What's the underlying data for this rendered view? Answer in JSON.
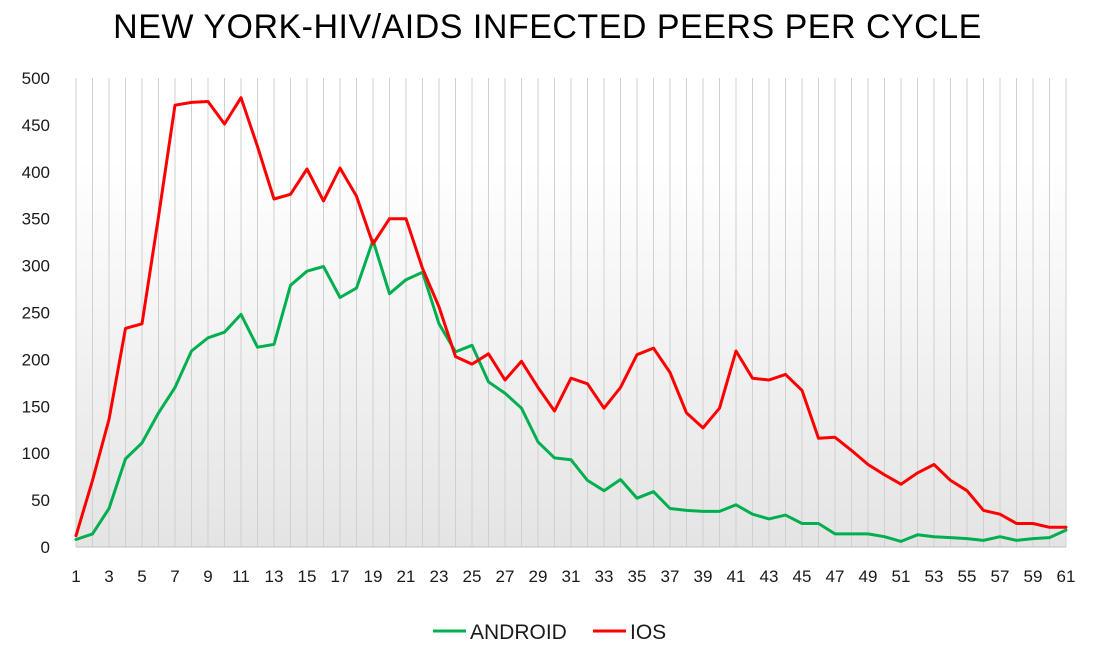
{
  "chart_data": {
    "type": "line",
    "title": "NEW YORK-HIV/AIDS INFECTED PEERS PER CYCLE",
    "xlabel": "",
    "ylabel": "",
    "ylim": [
      0,
      500
    ],
    "yticks": [
      0,
      50,
      100,
      150,
      200,
      250,
      300,
      350,
      400,
      450,
      500
    ],
    "x": [
      1,
      2,
      3,
      4,
      5,
      6,
      7,
      8,
      9,
      10,
      11,
      12,
      13,
      14,
      15,
      16,
      17,
      18,
      19,
      20,
      21,
      22,
      23,
      24,
      25,
      26,
      27,
      28,
      29,
      30,
      31,
      32,
      33,
      34,
      35,
      36,
      37,
      38,
      39,
      40,
      41,
      42,
      43,
      44,
      45,
      46,
      47,
      48,
      49,
      50,
      51,
      52,
      53,
      54,
      55,
      56,
      57,
      58,
      59,
      60,
      61
    ],
    "xtick_labels": [
      1,
      3,
      5,
      7,
      9,
      11,
      13,
      15,
      17,
      19,
      21,
      23,
      25,
      27,
      29,
      31,
      33,
      35,
      37,
      39,
      41,
      43,
      45,
      47,
      49,
      51,
      53,
      55,
      57,
      59,
      61
    ],
    "legend_position": "bottom",
    "grid": "vertical lines",
    "series": [
      {
        "name": "ANDROID",
        "color": "#00b050",
        "values": [
          8,
          14,
          41,
          94,
          111,
          143,
          170,
          209,
          223,
          229,
          248,
          213,
          216,
          279,
          294,
          299,
          266,
          276,
          327,
          270,
          285,
          293,
          238,
          208,
          215,
          176,
          164,
          148,
          112,
          95,
          93,
          71,
          60,
          72,
          52,
          59,
          41,
          39,
          38,
          38,
          45,
          35,
          30,
          34,
          25,
          25,
          14,
          14,
          14,
          11,
          6,
          13,
          11,
          10,
          9,
          7,
          11,
          7,
          9,
          10,
          18
        ]
      },
      {
        "name": "IOS",
        "color": "#ff0000",
        "values": [
          12,
          71,
          136,
          233,
          238,
          352,
          471,
          474,
          475,
          451,
          479,
          427,
          371,
          376,
          403,
          369,
          404,
          374,
          323,
          350,
          350,
          297,
          256,
          203,
          195,
          206,
          178,
          198,
          170,
          145,
          180,
          174,
          148,
          170,
          205,
          212,
          186,
          143,
          127,
          148,
          209,
          180,
          178,
          184,
          167,
          116,
          117,
          103,
          88,
          77,
          67,
          79,
          88,
          71,
          60,
          39,
          35,
          25,
          25,
          21,
          21
        ]
      }
    ]
  }
}
